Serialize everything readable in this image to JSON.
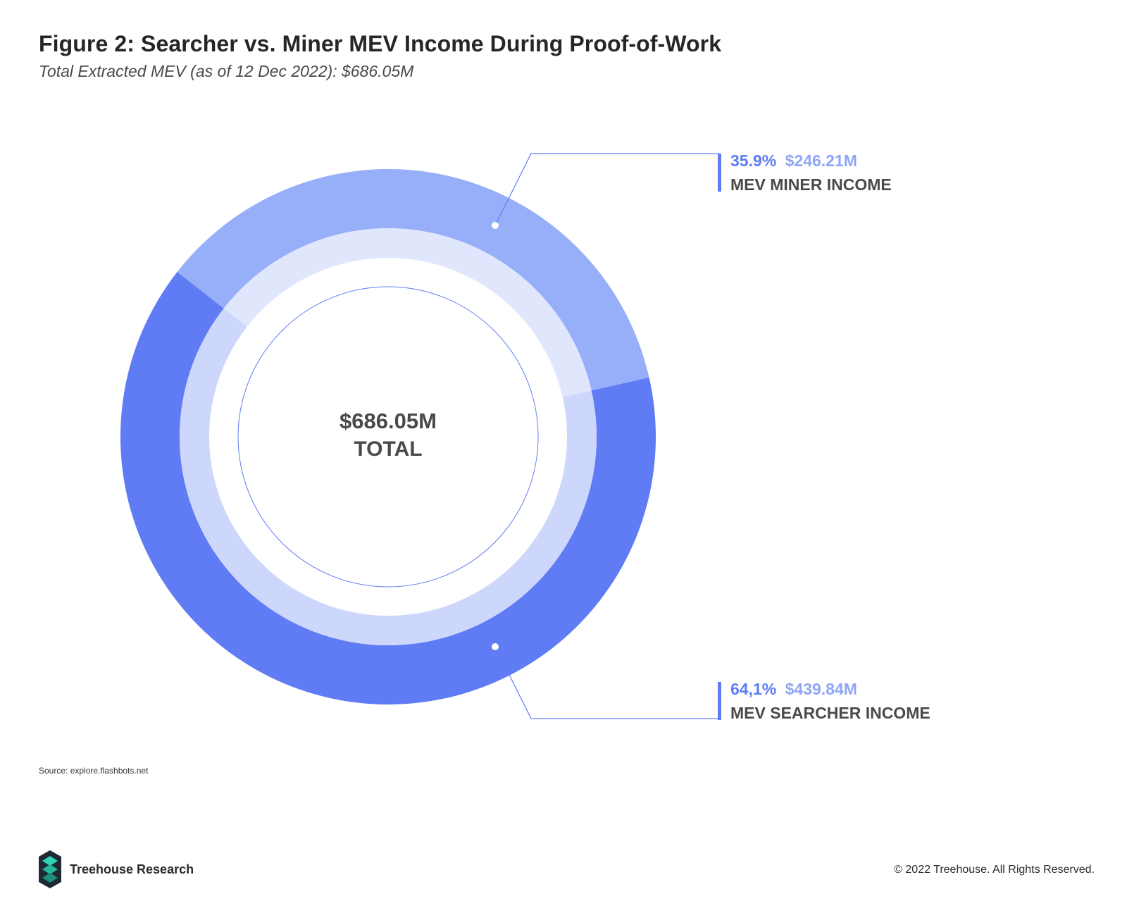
{
  "header": {
    "title": "Figure 2: Searcher vs. Miner MEV Income During Proof-of-Work",
    "subtitle": "Total Extracted MEV (as of 12 Dec 2022): $686.05M"
  },
  "center": {
    "value": "$686.05M",
    "label": "TOTAL"
  },
  "callouts": {
    "miner": {
      "percent": "35.9%",
      "amount": "$246.21M",
      "label": "MEV MINER INCOME"
    },
    "searcher": {
      "percent": "64,1%",
      "amount": "$439.84M",
      "label": "MEV SEARCHER INCOME"
    }
  },
  "footer": {
    "source": "Source: explore.flashbots.net",
    "brand": "Treehouse Research",
    "copyright": "© 2022 Treehouse. All Rights Reserved."
  },
  "colors": {
    "miner_outer": "#97aef8",
    "miner_inner": "#e0e6fc",
    "searcher_outer": "#5f7cf4",
    "searcher_inner": "#cdd7fb",
    "accent": "#5f7cf4",
    "accent_light": "#8fa5f7",
    "guide": "#5f7cf4"
  },
  "icons": {
    "brand_logo": "treehouse-logo-icon"
  },
  "chart_data": {
    "type": "pie",
    "title": "Figure 2: Searcher vs. Miner MEV Income During Proof-of-Work",
    "subtitle": "Total Extracted MEV (as of 12 Dec 2022): $686.05M",
    "total": 686.05,
    "unit": "$M",
    "slices": [
      {
        "name": "MEV MINER INCOME",
        "value": 246.21,
        "percent": 35.9
      },
      {
        "name": "MEV SEARCHER INCOME",
        "value": 439.84,
        "percent": 64.1
      }
    ],
    "legend": "callouts-right"
  }
}
